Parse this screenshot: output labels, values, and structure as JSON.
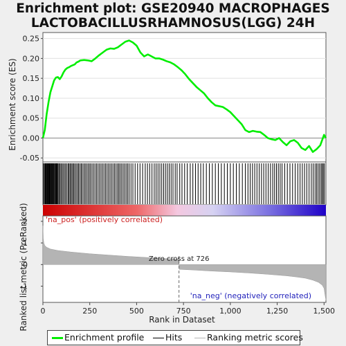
{
  "title_line1": "Enrichment plot: GSE20940 MACROPHAGES",
  "title_line2": "LACTOBACILLUSRHAMNOSUS(LGG) 24H",
  "legend": {
    "profile": "Enrichment profile",
    "hits": "Hits",
    "ranking": "Ranking metric scores"
  },
  "colors": {
    "profile": "#00ee00",
    "hits": "#000000",
    "ranking": "#b4b4b4",
    "pos_text": "#cc2222",
    "neg_text": "#2222bb",
    "frame_bg": "#ffffff"
  },
  "chart_data": [
    {
      "type": "line",
      "ylabel": "Enrichment score (ES)",
      "ylim": [
        -0.06,
        0.265
      ],
      "xlim": [
        0,
        1510
      ],
      "yticks": [
        -0.05,
        0.0,
        0.05,
        0.1,
        0.15,
        0.2,
        0.25
      ],
      "ytick_labels": [
        "-0.05",
        "0.00",
        "0.05",
        "0.10",
        "0.15",
        "0.20",
        "0.25"
      ],
      "series": [
        {
          "x": [
            0,
            10,
            20,
            30,
            40,
            50,
            60,
            70,
            80,
            90,
            100,
            110,
            120,
            130,
            140,
            150,
            160,
            170,
            180,
            190,
            200,
            220,
            240,
            260,
            280,
            300,
            320,
            340,
            360,
            380,
            400,
            420,
            440,
            460,
            480,
            500,
            520,
            540,
            560,
            580,
            600,
            620,
            640,
            660,
            680,
            700,
            720,
            740,
            760,
            780,
            800,
            820,
            840,
            860,
            880,
            900,
            920,
            940,
            960,
            980,
            1000,
            1020,
            1040,
            1060,
            1080,
            1100,
            1120,
            1140,
            1160,
            1180,
            1200,
            1220,
            1240,
            1260,
            1280,
            1300,
            1320,
            1340,
            1360,
            1380,
            1400,
            1420,
            1440,
            1460,
            1480,
            1490,
            1500,
            1510
          ],
          "y": [
            0.0,
            0.02,
            0.06,
            0.09,
            0.115,
            0.13,
            0.145,
            0.152,
            0.153,
            0.148,
            0.155,
            0.165,
            0.172,
            0.176,
            0.178,
            0.181,
            0.183,
            0.185,
            0.19,
            0.192,
            0.195,
            0.196,
            0.195,
            0.193,
            0.2,
            0.208,
            0.215,
            0.222,
            0.225,
            0.224,
            0.228,
            0.235,
            0.242,
            0.245,
            0.24,
            0.232,
            0.215,
            0.205,
            0.21,
            0.205,
            0.2,
            0.2,
            0.197,
            0.193,
            0.19,
            0.185,
            0.178,
            0.17,
            0.16,
            0.148,
            0.138,
            0.128,
            0.12,
            0.112,
            0.1,
            0.09,
            0.082,
            0.08,
            0.078,
            0.072,
            0.065,
            0.055,
            0.045,
            0.035,
            0.02,
            0.015,
            0.018,
            0.016,
            0.015,
            0.008,
            0.0,
            -0.003,
            -0.005,
            0.0,
            -0.01,
            -0.018,
            -0.008,
            -0.005,
            -0.012,
            -0.025,
            -0.03,
            -0.02,
            -0.035,
            -0.028,
            -0.018,
            -0.005,
            0.008,
            0.0
          ]
        }
      ]
    },
    {
      "type": "bar",
      "title": "Hits",
      "hit_positions": [
        3,
        8,
        12,
        15,
        18,
        22,
        25,
        28,
        31,
        34,
        37,
        40,
        44,
        47,
        50,
        54,
        57,
        60,
        64,
        68,
        72,
        76,
        80,
        85,
        90,
        96,
        102,
        108,
        115,
        121,
        128,
        135,
        140,
        146,
        152,
        158,
        164,
        170,
        177,
        184,
        190,
        197,
        204,
        210,
        218,
        225,
        232,
        240,
        247,
        254,
        262,
        270,
        278,
        286,
        294,
        302,
        310,
        318,
        326,
        334,
        342,
        350,
        358,
        366,
        374,
        382,
        390,
        398,
        405,
        412,
        420,
        428,
        436,
        444,
        452,
        460,
        470,
        480,
        492,
        505,
        518,
        532,
        546,
        558,
        570,
        582,
        594,
        604,
        614,
        624,
        634,
        644,
        654,
        664,
        674,
        684,
        694,
        706,
        716,
        730,
        742,
        756,
        770,
        786,
        800,
        814,
        828,
        842,
        856,
        872,
        888,
        904,
        920,
        936,
        952,
        968,
        984,
        1000,
        1016,
        1032,
        1048,
        1064,
        1080,
        1094,
        1106,
        1118,
        1130,
        1142,
        1154,
        1166,
        1178,
        1190,
        1202,
        1214,
        1226,
        1236,
        1246,
        1256,
        1266,
        1276,
        1290,
        1304,
        1318,
        1332,
        1346,
        1360,
        1372,
        1384,
        1396,
        1408,
        1420,
        1432,
        1442,
        1452,
        1460,
        1468,
        1476,
        1484,
        1490,
        1496,
        1502
      ]
    },
    {
      "type": "area",
      "ylabel": "Ranked list metric (PreRanked)",
      "xlabel": "Rank in Dataset",
      "ylim": [
        -1.75,
        2.25
      ],
      "yticks": [
        -1,
        0,
        1,
        2
      ],
      "ytick_labels": [
        "-1",
        "0",
        "1",
        "2"
      ],
      "xticks": [
        0,
        250,
        500,
        750,
        1000,
        1250,
        1500
      ],
      "xtick_labels": [
        "0",
        "250",
        "500",
        "750",
        "1,000",
        "1,250",
        "1,500"
      ],
      "x": [
        0,
        2,
        5,
        10,
        20,
        40,
        80,
        150,
        250,
        350,
        450,
        550,
        650,
        725,
        726,
        727,
        800,
        900,
        1000,
        1100,
        1200,
        1300,
        1350,
        1400,
        1440,
        1470,
        1490,
        1500,
        1505,
        1510
      ],
      "y": [
        1.8,
        1.2,
        1.0,
        0.88,
        0.8,
        0.72,
        0.65,
        0.58,
        0.5,
        0.44,
        0.38,
        0.33,
        0.28,
        0.25,
        0.0,
        -0.22,
        -0.25,
        -0.3,
        -0.34,
        -0.39,
        -0.45,
        -0.52,
        -0.57,
        -0.63,
        -0.72,
        -0.82,
        -0.95,
        -1.1,
        -1.4,
        -1.65
      ],
      "zero_cross_label": "Zero cross at 726",
      "zero_cross_x": 726,
      "pos_label": "'na_pos' (positively correlated)",
      "neg_label": "'na_neg' (negatively correlated)"
    }
  ]
}
